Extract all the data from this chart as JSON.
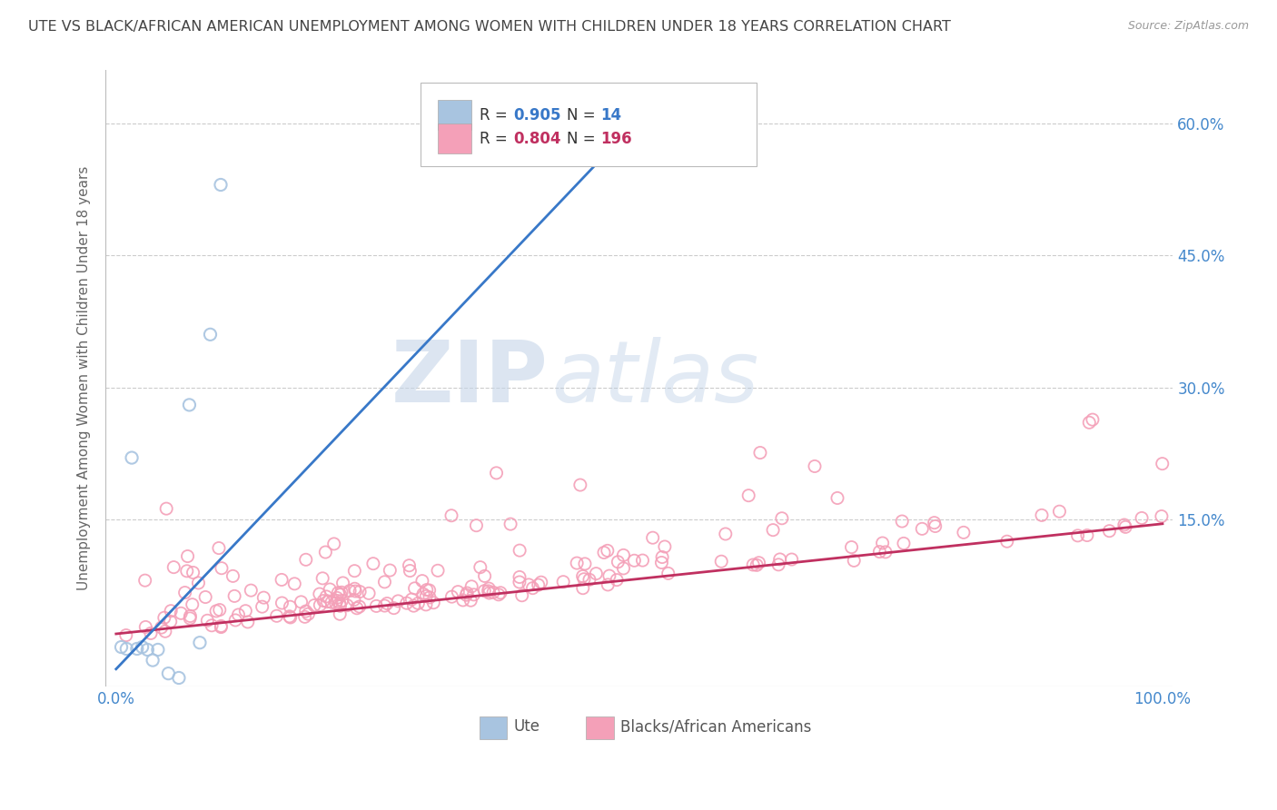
{
  "title": "UTE VS BLACK/AFRICAN AMERICAN UNEMPLOYMENT AMONG WOMEN WITH CHILDREN UNDER 18 YEARS CORRELATION CHART",
  "source": "Source: ZipAtlas.com",
  "ylabel": "Unemployment Among Women with Children Under 18 years",
  "ytick_values": [
    0.15,
    0.3,
    0.45,
    0.6
  ],
  "ytick_labels": [
    "15.0%",
    "30.0%",
    "45.0%",
    "60.0%"
  ],
  "xtick_values": [
    0.0,
    1.0
  ],
  "xtick_labels": [
    "0.0%",
    "100.0%"
  ],
  "xlim": [
    -0.01,
    1.01
  ],
  "ylim": [
    -0.04,
    0.66
  ],
  "ute_R": 0.905,
  "ute_N": 14,
  "black_R": 0.804,
  "black_N": 196,
  "ute_marker_color": "#a8c4e0",
  "ute_line_color": "#3878c8",
  "black_marker_color": "#f4a0b8",
  "black_line_color": "#c03060",
  "legend_label_ute": "Ute",
  "legend_label_black": "Blacks/African Americans",
  "watermark_zip": "ZIP",
  "watermark_atlas": "atlas",
  "background_color": "#ffffff",
  "grid_color": "#cccccc",
  "title_color": "#444444",
  "axis_label_color": "#666666",
  "tick_label_color": "#4488cc",
  "ute_trend_x0": 0.0,
  "ute_trend_y0": -0.02,
  "ute_trend_x1": 0.52,
  "ute_trend_y1": 0.63,
  "black_trend_x0": 0.0,
  "black_trend_x1": 1.0,
  "black_trend_y0": 0.02,
  "black_trend_y1": 0.145
}
